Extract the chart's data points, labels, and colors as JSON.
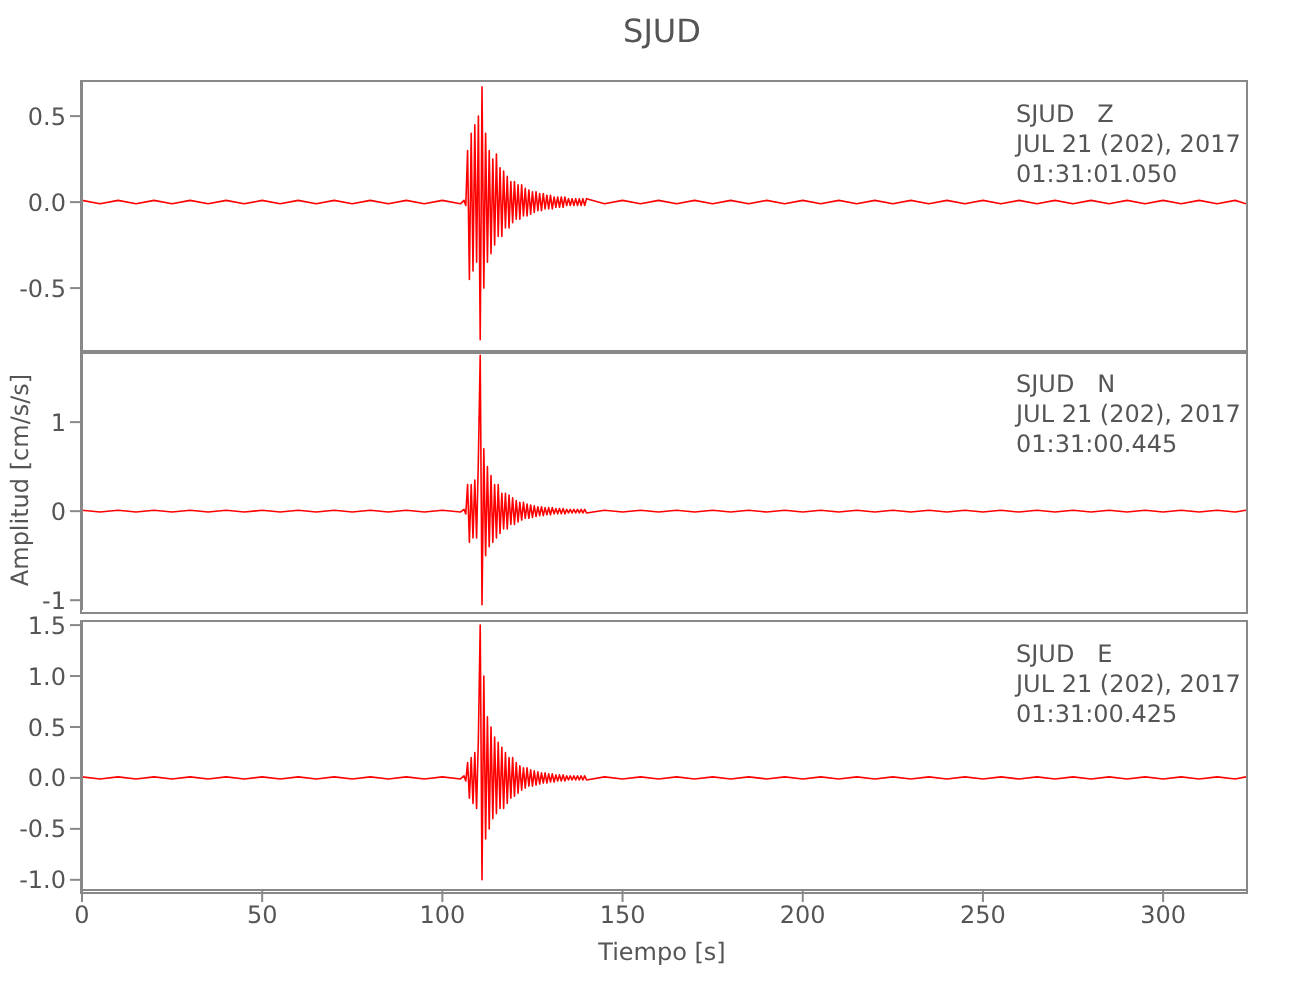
{
  "chart_data": [
    {
      "type": "line",
      "title": "SJUD",
      "annotations": [
        "SJUD   Z",
        "JUL 21 (202), 2017",
        "01:31:01.050"
      ],
      "xlim": [
        0,
        323
      ],
      "xticks": [
        0,
        50,
        100,
        150,
        200,
        250,
        300
      ],
      "ylim": [
        -0.86,
        0.71
      ],
      "yticks": [
        {
          "value": -0.5,
          "label": "-0.5"
        },
        {
          "value": 0,
          "label": "0.0"
        },
        {
          "value": 0.5,
          "label": "0.5"
        }
      ],
      "tick_labels": "y",
      "x": [
        0,
        5,
        10,
        15,
        20,
        25,
        30,
        35,
        40,
        45,
        50,
        55,
        60,
        65,
        70,
        75,
        80,
        85,
        90,
        95,
        100,
        105,
        106,
        106.5,
        107,
        107.5,
        108,
        108.5,
        109,
        109.5,
        110,
        110.5,
        111,
        111.5,
        112,
        112.5,
        113,
        113.5,
        114,
        114.5,
        115,
        115.5,
        116,
        116.5,
        117,
        117.5,
        118,
        118.5,
        119,
        119.5,
        120,
        120.5,
        121,
        121.5,
        122,
        122.5,
        123,
        123.5,
        124,
        124.5,
        125,
        125.5,
        126,
        126.5,
        127,
        127.5,
        128,
        128.5,
        129,
        129.5,
        130,
        130.5,
        131,
        131.5,
        132,
        132.5,
        133,
        133.5,
        134,
        134.5,
        135,
        135.5,
        136,
        136.5,
        137,
        137.5,
        138,
        138.5,
        139,
        139.5,
        140,
        145,
        150,
        155,
        160,
        165,
        170,
        175,
        180,
        185,
        190,
        195,
        200,
        205,
        210,
        215,
        220,
        225,
        230,
        235,
        240,
        245,
        250,
        255,
        260,
        265,
        270,
        275,
        280,
        285,
        290,
        295,
        300,
        305,
        310,
        315,
        320,
        323
      ],
      "series": [
        {
          "color": "#ff0000",
          "values": [
            0.01,
            -0.01,
            0.01,
            -0.01,
            0.01,
            -0.01,
            0.01,
            -0.01,
            0.01,
            -0.01,
            0.01,
            -0.01,
            0.01,
            -0.01,
            0.01,
            -0.01,
            0.01,
            -0.01,
            0.01,
            -0.01,
            0.01,
            -0.01,
            0.01,
            -0.02,
            0.3,
            -0.45,
            0.4,
            -0.4,
            0.45,
            -0.35,
            0.5,
            -0.8,
            0.67,
            -0.5,
            0.4,
            -0.35,
            0.3,
            -0.3,
            0.25,
            -0.25,
            0.28,
            -0.2,
            0.2,
            -0.2,
            0.18,
            -0.15,
            0.15,
            -0.15,
            0.12,
            -0.12,
            0.12,
            -0.1,
            0.1,
            -0.1,
            0.1,
            -0.08,
            0.08,
            -0.08,
            0.07,
            -0.07,
            0.06,
            -0.06,
            0.06,
            -0.05,
            0.05,
            -0.05,
            0.05,
            -0.04,
            0.04,
            -0.04,
            0.04,
            -0.04,
            0.03,
            -0.03,
            0.03,
            -0.03,
            0.03,
            -0.03,
            0.03,
            -0.02,
            0.02,
            -0.02,
            0.02,
            -0.02,
            0.02,
            -0.02,
            0.02,
            -0.02,
            0.02,
            -0.02,
            0.02,
            -0.01,
            0.01,
            -0.01,
            0.01,
            -0.01,
            0.01,
            -0.01,
            0.01,
            -0.01,
            0.01,
            -0.01,
            0.01,
            -0.01,
            0.01,
            -0.01,
            0.01,
            -0.01,
            0.01,
            -0.01,
            0.01,
            -0.01,
            0.01,
            -0.01,
            0.01,
            -0.01,
            0.01,
            -0.01,
            0.01,
            -0.01,
            0.01,
            -0.01,
            0.01,
            -0.01,
            0.01,
            -0.01,
            0.01,
            -0.01
          ]
        }
      ]
    },
    {
      "type": "line",
      "ylabel": "Amplitud  [cm/s/s]",
      "annotations": [
        "SJUD   N",
        "JUL 21 (202), 2017",
        "01:31:00.445"
      ],
      "xlim": [
        0,
        323
      ],
      "xticks": [
        0,
        50,
        100,
        150,
        200,
        250,
        300
      ],
      "ylim": [
        -1.11,
        1.81
      ],
      "yticks": [
        -1,
        0,
        1
      ],
      "tick_labels": "y",
      "x": [
        0,
        5,
        10,
        15,
        20,
        25,
        30,
        35,
        40,
        45,
        50,
        55,
        60,
        65,
        70,
        75,
        80,
        85,
        90,
        95,
        100,
        105,
        106,
        106.5,
        107,
        107.5,
        108,
        108.5,
        109,
        109.5,
        110,
        110.5,
        111,
        111.5,
        112,
        112.5,
        113,
        113.5,
        114,
        114.5,
        115,
        115.5,
        116,
        116.5,
        117,
        117.5,
        118,
        118.5,
        119,
        119.5,
        120,
        120.5,
        121,
        121.5,
        122,
        122.5,
        123,
        123.5,
        124,
        124.5,
        125,
        125.5,
        126,
        126.5,
        127,
        127.5,
        128,
        128.5,
        129,
        129.5,
        130,
        130.5,
        131,
        131.5,
        132,
        132.5,
        133,
        133.5,
        134,
        134.5,
        135,
        135.5,
        136,
        136.5,
        137,
        137.5,
        138,
        138.5,
        139,
        139.5,
        140,
        145,
        150,
        155,
        160,
        165,
        170,
        175,
        180,
        185,
        190,
        195,
        200,
        205,
        210,
        215,
        220,
        225,
        230,
        235,
        240,
        245,
        250,
        255,
        260,
        265,
        270,
        275,
        280,
        285,
        290,
        295,
        300,
        305,
        310,
        315,
        320,
        323
      ],
      "series": [
        {
          "color": "#ff0000",
          "values": [
            0.01,
            -0.01,
            0.01,
            -0.01,
            0.01,
            -0.01,
            0.01,
            -0.01,
            0.01,
            -0.01,
            0.01,
            -0.01,
            0.01,
            -0.01,
            0.01,
            -0.01,
            0.01,
            -0.01,
            0.01,
            -0.01,
            0.01,
            -0.01,
            0.02,
            -0.03,
            0.3,
            -0.35,
            0.3,
            -0.3,
            0.35,
            -0.3,
            0.6,
            1.75,
            -1.05,
            0.7,
            -0.5,
            0.5,
            -0.4,
            0.4,
            -0.35,
            0.3,
            -0.3,
            0.3,
            -0.25,
            0.2,
            -0.2,
            0.2,
            -0.2,
            0.18,
            -0.15,
            0.15,
            -0.15,
            0.12,
            -0.12,
            0.1,
            -0.1,
            0.1,
            -0.08,
            0.08,
            -0.08,
            0.07,
            -0.07,
            0.06,
            -0.06,
            0.05,
            -0.05,
            0.05,
            -0.05,
            0.04,
            -0.04,
            0.04,
            -0.04,
            0.04,
            -0.03,
            0.03,
            -0.03,
            0.03,
            -0.03,
            0.03,
            -0.03,
            0.02,
            -0.02,
            0.02,
            -0.02,
            0.02,
            -0.02,
            0.02,
            -0.02,
            0.02,
            -0.02,
            0.02,
            -0.02,
            0.01,
            -0.01,
            0.01,
            -0.01,
            0.01,
            -0.01,
            0.01,
            -0.01,
            0.01,
            -0.01,
            0.01,
            -0.01,
            0.01,
            -0.01,
            0.01,
            -0.01,
            0.01,
            -0.01,
            0.01,
            -0.01,
            0.01,
            -0.01,
            0.01,
            -0.01,
            0.01,
            -0.01,
            0.01,
            -0.01,
            0.01,
            -0.01,
            0.01,
            -0.01,
            0.01,
            -0.01,
            0.01,
            -0.01,
            0.01
          ]
        }
      ]
    },
    {
      "type": "line",
      "xlabel": "Tiempo  [s]",
      "annotations": [
        "SJUD   E",
        "JUL 21 (202), 2017",
        "01:31:00.425"
      ],
      "xlim": [
        0,
        323
      ],
      "xticks": [
        0,
        50,
        100,
        150,
        200,
        250,
        300
      ],
      "ylim": [
        -1.1,
        1.55
      ],
      "yticks": [
        {
          "value": -1,
          "label": "-1.0"
        },
        {
          "value": -0.5,
          "label": "-0.5"
        },
        {
          "value": 0,
          "label": "0.0"
        },
        {
          "value": 0.5,
          "label": "0.5"
        },
        {
          "value": 1,
          "label": "1.0"
        },
        {
          "value": 1.5,
          "label": "1.5"
        }
      ],
      "x": [
        0,
        5,
        10,
        15,
        20,
        25,
        30,
        35,
        40,
        45,
        50,
        55,
        60,
        65,
        70,
        75,
        80,
        85,
        90,
        95,
        100,
        105,
        106,
        106.5,
        107,
        107.5,
        108,
        108.5,
        109,
        109.5,
        110,
        110.5,
        111,
        111.5,
        112,
        112.5,
        113,
        113.5,
        114,
        114.5,
        115,
        115.5,
        116,
        116.5,
        117,
        117.5,
        118,
        118.5,
        119,
        119.5,
        120,
        120.5,
        121,
        121.5,
        122,
        122.5,
        123,
        123.5,
        124,
        124.5,
        125,
        125.5,
        126,
        126.5,
        127,
        127.5,
        128,
        128.5,
        129,
        129.5,
        130,
        130.5,
        131,
        131.5,
        132,
        132.5,
        133,
        133.5,
        134,
        134.5,
        135,
        135.5,
        136,
        136.5,
        137,
        137.5,
        138,
        138.5,
        139,
        139.5,
        140,
        145,
        150,
        155,
        160,
        165,
        170,
        175,
        180,
        185,
        190,
        195,
        200,
        205,
        210,
        215,
        220,
        225,
        230,
        235,
        240,
        245,
        250,
        255,
        260,
        265,
        270,
        275,
        280,
        285,
        290,
        295,
        300,
        305,
        310,
        315,
        320,
        323
      ],
      "series": [
        {
          "color": "#ff0000",
          "values": [
            0.01,
            -0.01,
            0.01,
            -0.01,
            0.01,
            -0.01,
            0.01,
            -0.01,
            0.01,
            -0.01,
            0.01,
            -0.01,
            0.01,
            -0.01,
            0.01,
            -0.01,
            0.01,
            -0.01,
            0.01,
            -0.01,
            0.01,
            -0.01,
            0.02,
            -0.03,
            0.15,
            -0.2,
            0.2,
            -0.25,
            0.25,
            -0.3,
            0.4,
            1.5,
            -1.0,
            1.0,
            -0.6,
            0.6,
            -0.5,
            0.5,
            -0.4,
            0.4,
            -0.35,
            0.35,
            -0.3,
            0.3,
            -0.3,
            0.25,
            -0.25,
            0.2,
            -0.2,
            0.2,
            -0.18,
            0.15,
            -0.15,
            0.12,
            -0.12,
            0.1,
            -0.1,
            0.1,
            -0.08,
            0.08,
            -0.08,
            0.07,
            -0.07,
            0.06,
            -0.06,
            0.05,
            -0.05,
            0.05,
            -0.05,
            0.04,
            -0.04,
            0.04,
            -0.04,
            0.03,
            -0.03,
            0.03,
            -0.03,
            0.03,
            -0.03,
            0.02,
            -0.02,
            0.02,
            -0.02,
            0.02,
            -0.02,
            0.02,
            -0.02,
            0.02,
            -0.02,
            0.02,
            -0.02,
            0.01,
            -0.01,
            0.01,
            -0.01,
            0.01,
            -0.01,
            0.01,
            -0.01,
            0.01,
            -0.01,
            0.01,
            -0.01,
            0.01,
            -0.01,
            0.01,
            -0.01,
            0.01,
            -0.01,
            0.01,
            -0.01,
            0.01,
            -0.01,
            0.01,
            -0.01,
            0.01,
            -0.01,
            0.01,
            -0.01,
            0.01,
            -0.01,
            0.01,
            -0.01,
            0.01,
            -0.01,
            0.01,
            -0.01,
            0.01
          ]
        }
      ]
    }
  ]
}
